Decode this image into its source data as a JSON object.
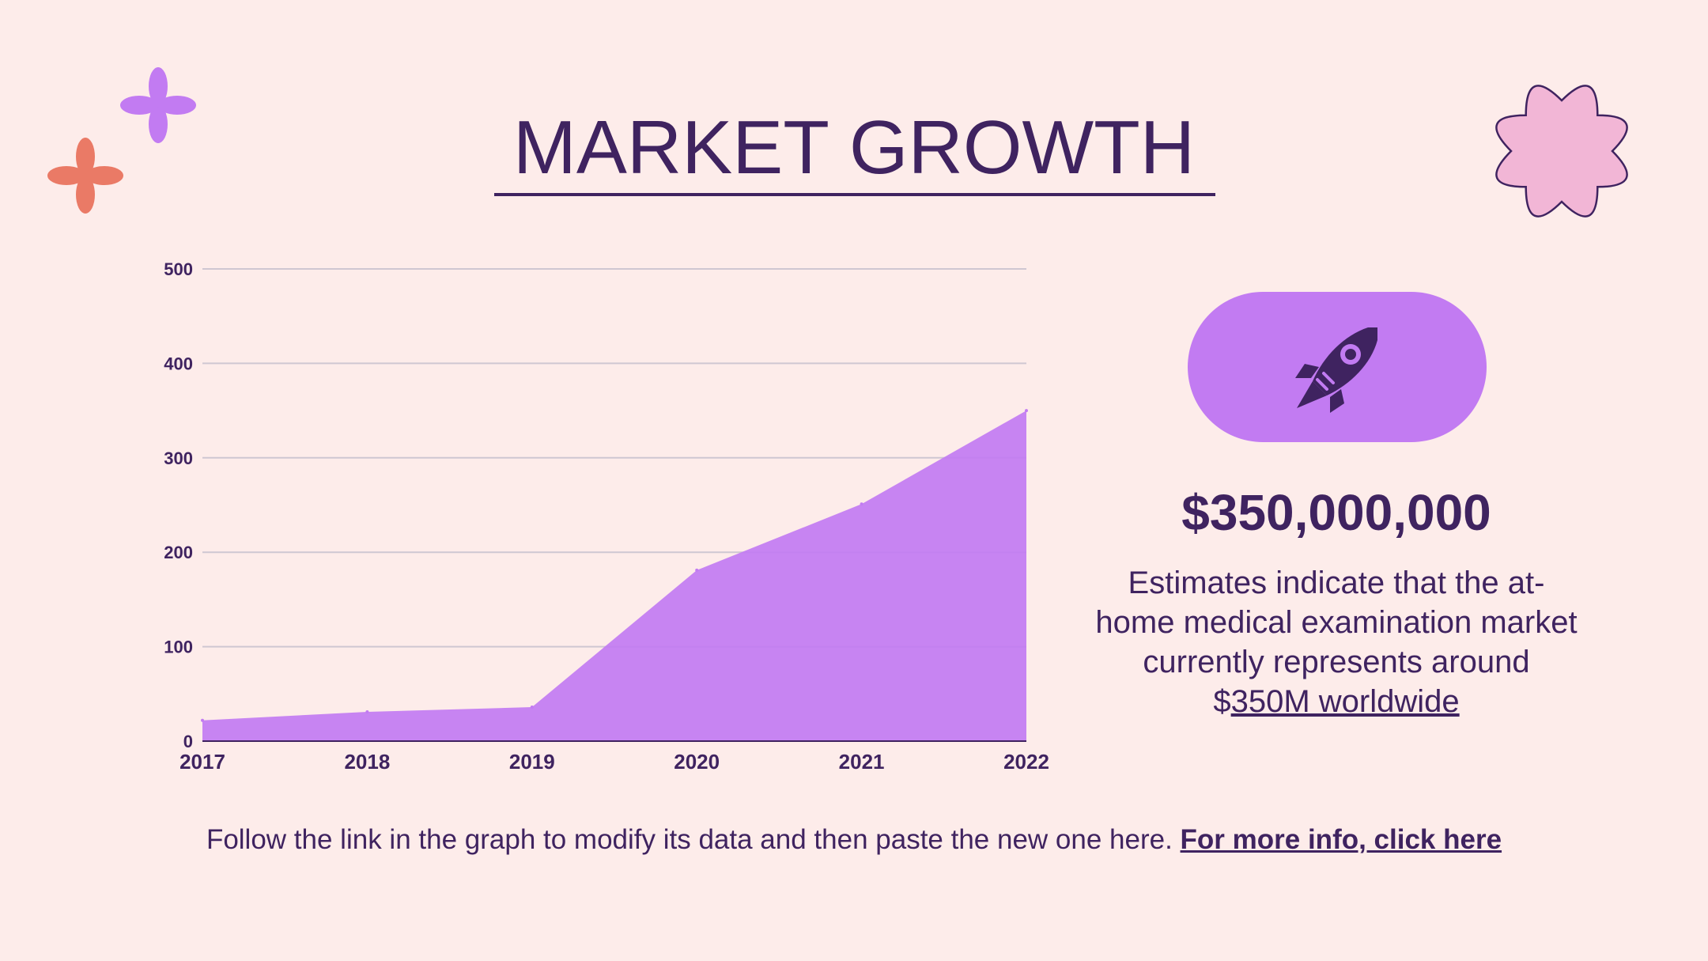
{
  "slide": {
    "title": "MARKET GROWTH",
    "stat_value": "$350,000,000",
    "description_text": "Estimates indicate that the at-home medical examination market currently represents around $",
    "description_link": "350M worldwide",
    "footer_text": "Follow the link in the graph to modify its data and then paste the new one here. ",
    "footer_link": "For more info, click here"
  },
  "colors": {
    "background": "#fdecea",
    "text": "#3f2360",
    "area_fill": "#c27bf2",
    "pill": "#c27bf2",
    "flower_purple": "#c27bf2",
    "flower_orange": "#ea7a66",
    "flower_pink": "#f2b6d6"
  },
  "icons": {
    "pill_icon": "rocket-icon",
    "decor_top_left": "flower-icon",
    "decor_top_right": "flower-icon"
  },
  "chart_data": {
    "type": "area",
    "categories": [
      "2017",
      "2018",
      "2019",
      "2020",
      "2021",
      "2022"
    ],
    "series": [
      {
        "values": [
          22,
          31,
          36,
          181,
          251,
          350
        ]
      }
    ],
    "yticks": [
      "0",
      "100",
      "200",
      "300",
      "400",
      "500"
    ],
    "ylim": [
      0,
      500
    ],
    "grid": true,
    "legend": "none"
  }
}
